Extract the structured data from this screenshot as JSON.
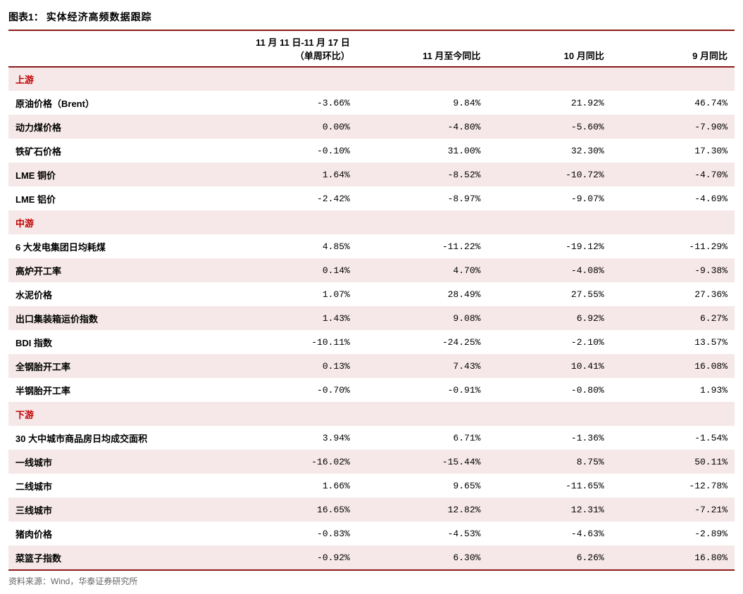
{
  "title_prefix": "图表1：",
  "title_text": "实体经济高频数据跟踪",
  "columns": [
    "",
    "11 月 11 日-11 月 17 日|（单周环比）",
    "11 月至今同比",
    "10 月同比",
    "9 月同比"
  ],
  "column_widths": [
    "28%",
    "20%",
    "18%",
    "17%",
    "17%"
  ],
  "rows": [
    {
      "type": "section",
      "label": "上游",
      "cells": [
        "",
        "",
        "",
        ""
      ]
    },
    {
      "type": "data",
      "label": "原油价格（Brent）",
      "cells": [
        "-3.66%",
        "9.84%",
        "21.92%",
        "46.74%"
      ]
    },
    {
      "type": "data",
      "label": "动力煤价格",
      "cells": [
        "0.00%",
        "-4.80%",
        "-5.60%",
        "-7.90%"
      ]
    },
    {
      "type": "data",
      "label": "铁矿石价格",
      "cells": [
        "-0.10%",
        "31.00%",
        "32.30%",
        "17.30%"
      ]
    },
    {
      "type": "data",
      "label": "LME 铜价",
      "cells": [
        "1.64%",
        "-8.52%",
        "-10.72%",
        "-4.70%"
      ]
    },
    {
      "type": "data",
      "label": "LME 铝价",
      "cells": [
        "-2.42%",
        "-8.97%",
        "-9.07%",
        "-4.69%"
      ]
    },
    {
      "type": "section",
      "label": "中游",
      "cells": [
        "",
        "",
        "",
        ""
      ]
    },
    {
      "type": "data",
      "label": "6 大发电集团日均耗煤",
      "cells": [
        "4.85%",
        "-11.22%",
        "-19.12%",
        "-11.29%"
      ]
    },
    {
      "type": "data",
      "label": "高炉开工率",
      "cells": [
        "0.14%",
        "4.70%",
        "-4.08%",
        "-9.38%"
      ]
    },
    {
      "type": "data",
      "label": "水泥价格",
      "cells": [
        "1.07%",
        "28.49%",
        "27.55%",
        "27.36%"
      ]
    },
    {
      "type": "data",
      "label": "出口集装箱运价指数",
      "cells": [
        "1.43%",
        "9.08%",
        "6.92%",
        "6.27%"
      ]
    },
    {
      "type": "data",
      "label": "BDI 指数",
      "cells": [
        "-10.11%",
        "-24.25%",
        "-2.10%",
        "13.57%"
      ]
    },
    {
      "type": "data",
      "label": "全钢胎开工率",
      "cells": [
        "0.13%",
        "7.43%",
        "10.41%",
        "16.08%"
      ]
    },
    {
      "type": "data",
      "label": "半钢胎开工率",
      "cells": [
        "-0.70%",
        "-0.91%",
        "-0.80%",
        "1.93%"
      ]
    },
    {
      "type": "section",
      "label": "下游",
      "cells": [
        "",
        "",
        "",
        ""
      ]
    },
    {
      "type": "data",
      "label": "30 大中城市商品房日均成交面积",
      "cells": [
        "3.94%",
        "6.71%",
        "-1.36%",
        "-1.54%"
      ]
    },
    {
      "type": "data",
      "label": "一线城市",
      "cells": [
        "-16.02%",
        "-15.44%",
        "8.75%",
        "50.11%"
      ]
    },
    {
      "type": "data",
      "label": "二线城市",
      "cells": [
        "1.66%",
        "9.65%",
        "-11.65%",
        "-12.78%"
      ]
    },
    {
      "type": "data",
      "label": "三线城市",
      "cells": [
        "16.65%",
        "12.82%",
        "12.31%",
        "-7.21%"
      ]
    },
    {
      "type": "data",
      "label": "猪肉价格",
      "cells": [
        "-0.83%",
        "-4.53%",
        "-4.63%",
        "-2.89%"
      ]
    },
    {
      "type": "data",
      "label": "菜篮子指数",
      "cells": [
        "-0.92%",
        "6.30%",
        "6.26%",
        "16.80%"
      ]
    }
  ],
  "source_text": "资料来源：Wind，华泰证券研究所",
  "colors": {
    "header_border": "#8b1a1a",
    "band_odd": "#f6e8e8",
    "band_even": "#ffffff",
    "section_text": "#c00000",
    "footer_text": "#666666"
  }
}
